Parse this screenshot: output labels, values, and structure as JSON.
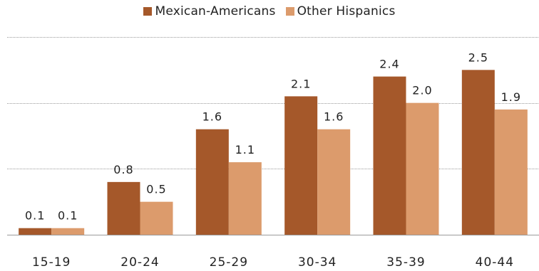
{
  "chart_data": {
    "type": "bar",
    "categories": [
      "15-19",
      "20-24",
      "25-29",
      "30-34",
      "35-39",
      "40-44"
    ],
    "series": [
      {
        "name": "Mexican-Americans",
        "values": [
          0.1,
          0.8,
          1.6,
          2.1,
          2.4,
          2.5
        ],
        "color": "#a5582a"
      },
      {
        "name": "Other Hispanics",
        "values": [
          0.1,
          0.5,
          1.1,
          1.6,
          2.0,
          1.9
        ],
        "color": "#dc9b6c"
      }
    ],
    "data_labels": [
      [
        "0.1",
        "0.8",
        "1.6",
        "2.1",
        "2.4",
        "2.5"
      ],
      [
        "0.1",
        "0.5",
        "1.1",
        "1.6",
        "2.0",
        "1.9"
      ]
    ],
    "title": "",
    "xlabel": "",
    "ylabel": "",
    "ylim": [
      0,
      3
    ],
    "grid": true,
    "legend_position": "top-center",
    "colors": {
      "gridline": "#9a9a9a",
      "axis": "#9a9a9a"
    }
  }
}
